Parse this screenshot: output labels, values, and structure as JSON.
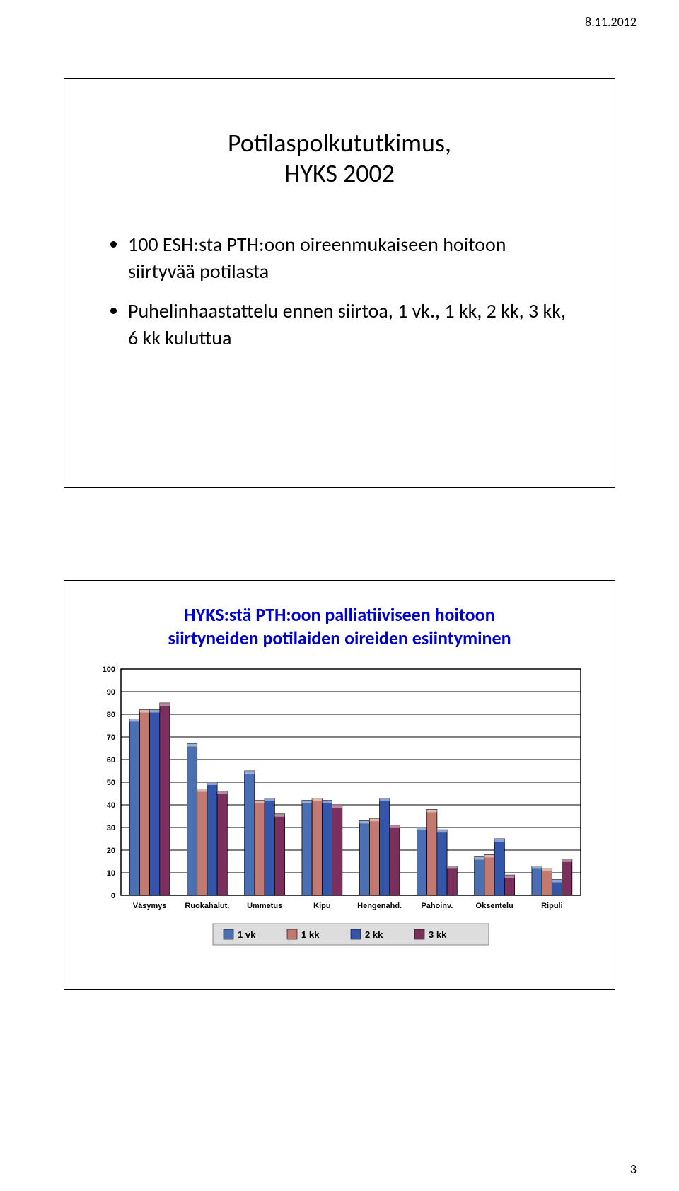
{
  "header_date": "8.11.2012",
  "page_number": "3",
  "slide1": {
    "title_line1": "Potilaspolkututkimus,",
    "title_line2": "HYKS 2002",
    "bullet1": "100 ESH:sta PTH:oon oireenmukaiseen hoitoon siirtyvää potilasta",
    "bullet2": "Puhelinhaastattelu ennen siirtoa, 1 vk., 1 kk, 2 kk, 3 kk, 6 kk kuluttua"
  },
  "chart": {
    "type": "bar",
    "title_line1": "HYKS:stä PTH:oon palliatiiviseen hoitoon",
    "title_line2": "siirtyneiden potilaiden oireiden esiintyminen",
    "title_color": "#0000cc",
    "categories": [
      "Väsymys",
      "Ruokahalut.",
      "Ummetus",
      "Kipu",
      "Hengenahd.",
      "Pahoinv.",
      "Oksentelu",
      "Ripuli"
    ],
    "series": [
      {
        "name": "1 vk",
        "color": "#4a6fb3",
        "values": [
          78,
          67,
          55,
          42,
          33,
          30,
          17,
          13
        ]
      },
      {
        "name": "1 kk",
        "color": "#c27a70",
        "values": [
          82,
          47,
          42,
          43,
          34,
          38,
          18,
          12
        ]
      },
      {
        "name": "2 kk",
        "color": "#3355aa",
        "values": [
          82,
          50,
          43,
          42,
          43,
          29,
          25,
          7
        ]
      },
      {
        "name": "3 kk",
        "color": "#7a2f5c",
        "values": [
          85,
          46,
          36,
          40,
          31,
          13,
          9,
          16
        ]
      }
    ],
    "ylim": [
      0,
      100
    ],
    "ytick_step": 10,
    "plot_background": "#ffffff",
    "legend_background": "#dddddd",
    "grid_color": "#000000",
    "axis_label_fontsize": 11,
    "title_fontsize": 26,
    "bar_group_width": 0.7
  }
}
